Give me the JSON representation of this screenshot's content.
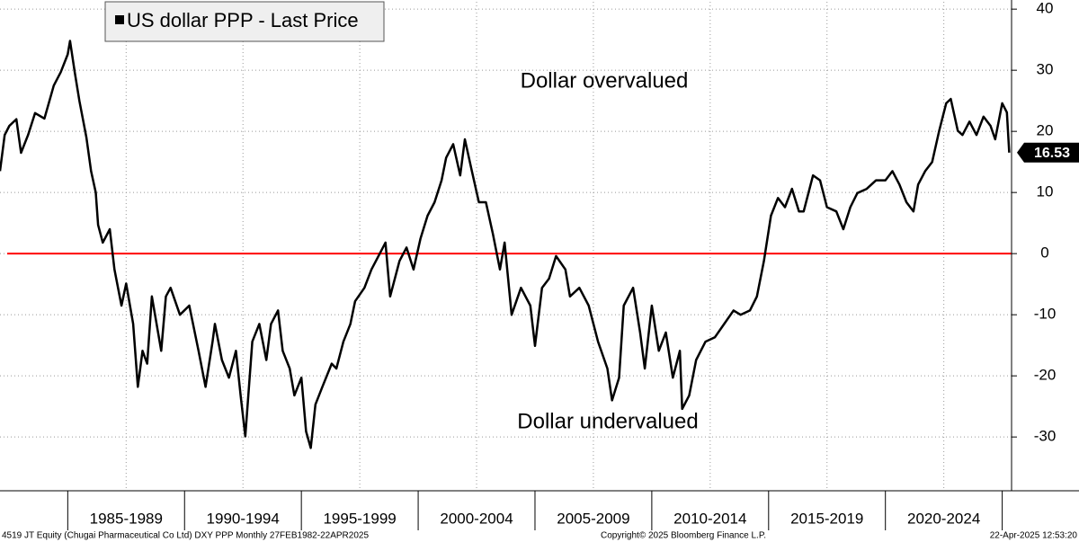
{
  "chart_data": {
    "type": "line",
    "legend_text": "US dollar PPP - Last Price",
    "annotations": [
      "Dollar overvalued",
      "Dollar undervalued"
    ],
    "annotation_color": "#ff0000",
    "reference_line": {
      "value": 0,
      "color": "#ff0000"
    },
    "footer": {
      "left": "4519 JT Equity (Chugai Pharmaceutical Co Ltd) DXY PPP  Monthly 27FEB1982-22APR2025",
      "center": "Copyright© 2025 Bloomberg Finance L.P.",
      "right": "22-Apr-2025 12:53:20"
    },
    "xlim": [
      1982.1,
      2025.4
    ],
    "xbands": [
      {
        "label": "1985-1989",
        "from": 1985,
        "to": 1990
      },
      {
        "label": "1990-1994",
        "from": 1990,
        "to": 1995
      },
      {
        "label": "1995-1999",
        "from": 1995,
        "to": 2000
      },
      {
        "label": "2000-2004",
        "from": 2000,
        "to": 2005
      },
      {
        "label": "2005-2009",
        "from": 2005,
        "to": 2010
      },
      {
        "label": "2010-2014",
        "from": 2010,
        "to": 2015
      },
      {
        "label": "2015-2019",
        "from": 2015,
        "to": 2020
      },
      {
        "label": "2020-2024",
        "from": 2020,
        "to": 2025
      }
    ],
    "ylim": [
      -38.8,
      41.2
    ],
    "yticks": [
      40,
      30,
      20,
      10,
      0,
      -10,
      -20,
      -30
    ],
    "grid": true,
    "x": [
      1982.1,
      1982.3,
      1982.5,
      1982.8,
      1983.0,
      1983.3,
      1983.6,
      1984.0,
      1984.4,
      1984.7,
      1985.0,
      1985.1,
      1985.3,
      1985.5,
      1985.8,
      1986.0,
      1986.2,
      1986.3,
      1986.5,
      1986.8,
      1987.0,
      1987.3,
      1987.5,
      1987.8,
      1988.0,
      1988.2,
      1988.4,
      1988.6,
      1989.0,
      1989.2,
      1989.4,
      1989.8,
      1990.2,
      1990.6,
      1990.9,
      1991.2,
      1991.3,
      1991.6,
      1991.9,
      1992.2,
      1992.4,
      1992.6,
      1992.9,
      1993.2,
      1993.5,
      1993.7,
      1994.0,
      1994.2,
      1994.5,
      1994.7,
      1995.0,
      1995.2,
      1995.4,
      1995.6,
      1995.9,
      1996.3,
      1996.5,
      1996.8,
      1997.1,
      1997.3,
      1997.7,
      1998.0,
      1998.3,
      1998.6,
      1998.8,
      1999.2,
      1999.5,
      1999.8,
      2000.1,
      2000.4,
      2000.7,
      2001.0,
      2001.2,
      2001.5,
      2001.8,
      2002.0,
      2002.3,
      2002.6,
      2002.9,
      2003.2,
      2003.5,
      2003.7,
      2004.0,
      2004.4,
      2004.8,
      2005.0,
      2005.3,
      2005.6,
      2005.9,
      2006.3,
      2006.5,
      2006.9,
      2007.3,
      2007.7,
      2008.1,
      2008.3,
      2008.6,
      2008.8,
      2009.2,
      2009.5,
      2009.7,
      2010.0,
      2010.3,
      2010.6,
      2010.9,
      2011.2,
      2011.3,
      2011.6,
      2011.9,
      2012.3,
      2012.7,
      2013.1,
      2013.5,
      2013.8,
      2014.2,
      2014.5,
      2014.8,
      2015.1,
      2015.4,
      2015.7,
      2016.0,
      2016.3,
      2016.5,
      2016.9,
      2017.2,
      2017.5,
      2017.9,
      2018.2,
      2018.5,
      2018.8,
      2019.2,
      2019.6,
      2020.0,
      2020.3,
      2020.6,
      2020.9,
      2021.2,
      2021.4,
      2021.7,
      2022.0,
      2022.3,
      2022.6,
      2022.8,
      2023.1,
      2023.3,
      2023.6,
      2023.9,
      2024.2,
      2024.5,
      2024.7,
      2025.0,
      2025.2,
      2025.3
    ],
    "series": [
      {
        "name": "US dollar PPP",
        "color": "#000000",
        "values": [
          13.5,
          19.4,
          20.9,
          22,
          16.5,
          19.4,
          23,
          22.1,
          27.5,
          29.7,
          32.6,
          34.8,
          29.7,
          25,
          19,
          13.5,
          10,
          4.7,
          1.8,
          4,
          -2.6,
          -8.5,
          -4.9,
          -11.5,
          -21.8,
          -15.9,
          -18,
          -7,
          -15.9,
          -7,
          -5.6,
          -10,
          -8.5,
          -15.9,
          -21.8,
          -14.4,
          -11.5,
          -17.4,
          -20.3,
          -15.9,
          -23.2,
          -29.9,
          -14.4,
          -11.5,
          -17.4,
          -11.5,
          -9.3,
          -15.9,
          -18.8,
          -23.2,
          -20.3,
          -29.1,
          -31.8,
          -24.7,
          -21.8,
          -18,
          -18.8,
          -14.4,
          -11.5,
          -7.8,
          -5.6,
          -2.6,
          -0.4,
          1.8,
          -7,
          -1.2,
          1,
          -2.6,
          2.5,
          6.2,
          8.4,
          12,
          15.7,
          17.9,
          12.8,
          18.7,
          13.5,
          8.4,
          8.4,
          3.2,
          -2.6,
          1.8,
          -10,
          -5.6,
          -8.5,
          -15.1,
          -5.6,
          -4.1,
          -0.4,
          -2.6,
          -7,
          -5.6,
          -8.5,
          -14.4,
          -18.8,
          -24,
          -20.3,
          -8.5,
          -5.6,
          -12.9,
          -18.8,
          -8.5,
          -15.9,
          -12.9,
          -20.3,
          -15.9,
          -25.4,
          -23.2,
          -17.4,
          -14.4,
          -13.7,
          -11.5,
          -9.3,
          -10,
          -9.3,
          -7,
          -1.2,
          6.2,
          9.1,
          7.6,
          10.6,
          6.9,
          6.9,
          12.8,
          12,
          7.6,
          6.9,
          4,
          7.6,
          9.9,
          10.6,
          12,
          12,
          13.5,
          11.3,
          8.4,
          6.9,
          11.3,
          13.5,
          15,
          20.1,
          24.6,
          25.3,
          20.1,
          19.4,
          21.6,
          19.4,
          22.4,
          20.9,
          18.7,
          24.6,
          23.1,
          16.53
        ]
      }
    ]
  }
}
